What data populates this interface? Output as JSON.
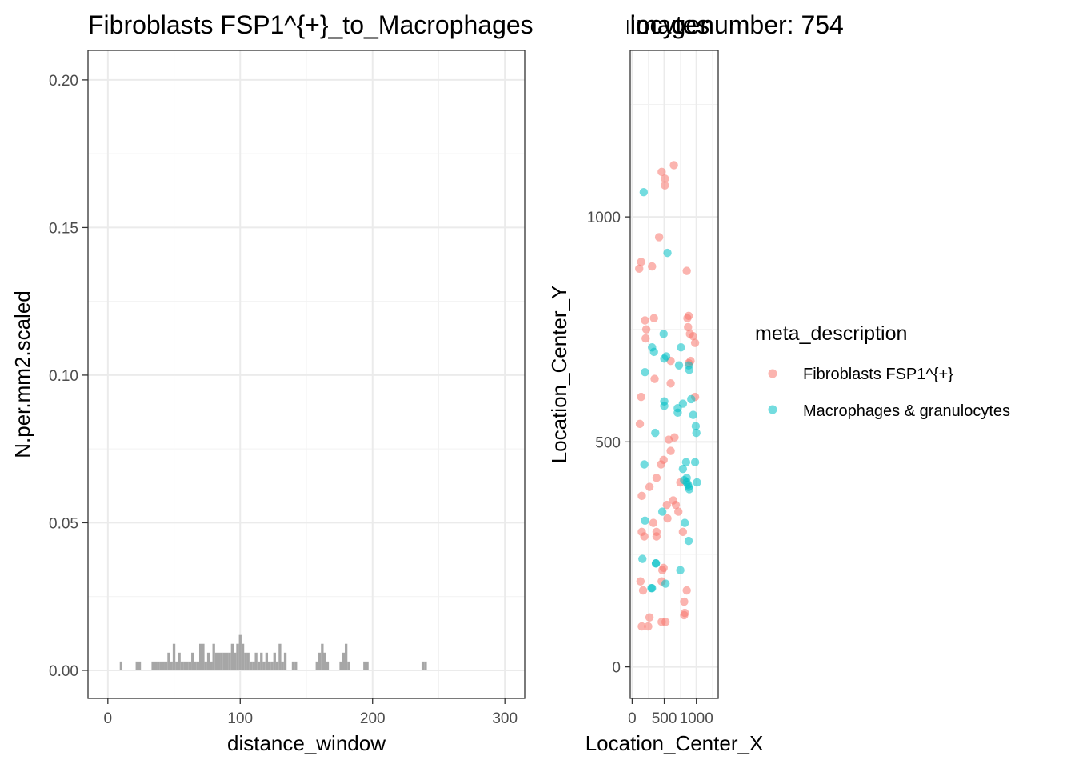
{
  "chart_data": [
    {
      "type": "bar",
      "title": "Fibroblasts FSP1^{+}_to_Macrophages & granulocytes",
      "xlabel": "distance_window",
      "ylabel": "N.per.mm2.scaled",
      "xlim": [
        -15,
        315
      ],
      "ylim": [
        -0.0095,
        0.21
      ],
      "xticks": [
        0,
        100,
        200,
        300
      ],
      "yticks": [
        0.0,
        0.05,
        0.1,
        0.15,
        0.2
      ],
      "ytick_labels": [
        "0.00",
        "0.05",
        "0.10",
        "0.15",
        "0.20"
      ],
      "grid": true,
      "bar_color": "#a6a6a6",
      "bar_width": 2,
      "x": [
        10,
        22,
        24,
        34,
        36,
        38,
        40,
        42,
        44,
        46,
        48,
        50,
        52,
        54,
        56,
        58,
        60,
        62,
        64,
        66,
        68,
        70,
        72,
        74,
        76,
        78,
        80,
        82,
        84,
        86,
        88,
        90,
        92,
        94,
        96,
        98,
        100,
        102,
        104,
        106,
        108,
        110,
        112,
        114,
        116,
        118,
        120,
        122,
        124,
        126,
        128,
        130,
        132,
        134,
        140,
        142,
        158,
        160,
        162,
        164,
        166,
        176,
        178,
        180,
        182,
        194,
        196,
        238,
        240
      ],
      "values": [
        0.003,
        0.003,
        0.003,
        0.003,
        0.003,
        0.003,
        0.003,
        0.003,
        0.003,
        0.006,
        0.003,
        0.009,
        0.003,
        0.006,
        0.003,
        0.003,
        0.003,
        0.003,
        0.006,
        0.003,
        0.003,
        0.009,
        0.009,
        0.003,
        0.006,
        0.003,
        0.009,
        0.006,
        0.006,
        0.006,
        0.006,
        0.006,
        0.006,
        0.009,
        0.006,
        0.009,
        0.012,
        0.009,
        0.006,
        0.006,
        0.003,
        0.003,
        0.006,
        0.003,
        0.006,
        0.003,
        0.006,
        0.003,
        0.003,
        0.006,
        0.003,
        0.009,
        0.003,
        0.006,
        0.003,
        0.003,
        0.003,
        0.006,
        0.009,
        0.006,
        0.003,
        0.003,
        0.006,
        0.009,
        0.003,
        0.003,
        0.003,
        0.003,
        0.003
      ]
    },
    {
      "type": "scatter",
      "title": "imagenumber:  754",
      "xlabel": "Location_Center_X",
      "ylabel": "Location_Center_Y",
      "xlim": [
        -30,
        1340
      ],
      "ylim": [
        -70,
        1370
      ],
      "xticks": [
        0,
        500,
        1000
      ],
      "xtick_labels": [
        "0",
        "500",
        "1000"
      ],
      "yticks": [
        0,
        500,
        1000
      ],
      "ytick_labels": [
        "0",
        "500",
        "1000"
      ],
      "grid": true,
      "legend_title": "meta_description",
      "legend_position": "right",
      "series": [
        {
          "name": "Fibroblasts FSP1^{+}",
          "color": "#F8766D",
          "x": [
            460,
            650,
            510,
            420,
            510,
            140,
            110,
            310,
            850,
            200,
            340,
            220,
            860,
            880,
            870,
            210,
            900,
            950,
            980,
            600,
            910,
            880,
            600,
            350,
            980,
            140,
            120,
            660,
            570,
            600,
            490,
            450,
            270,
            750,
            380,
            150,
            640,
            540,
            680,
            720,
            550,
            330,
            380,
            790,
            150,
            190,
            380,
            490,
            470,
            130,
            170,
            270,
            850,
            820,
            460,
            520,
            250,
            150,
            460,
            810,
            810
          ],
          "y": [
            1100,
            1115,
            1085,
            955,
            1070,
            900,
            885,
            890,
            880,
            770,
            775,
            750,
            775,
            780,
            755,
            730,
            740,
            735,
            720,
            680,
            680,
            675,
            630,
            640,
            600,
            600,
            540,
            510,
            505,
            480,
            460,
            450,
            400,
            410,
            420,
            380,
            370,
            360,
            360,
            345,
            330,
            320,
            300,
            300,
            300,
            290,
            290,
            220,
            215,
            190,
            170,
            110,
            170,
            120,
            190,
            100,
            90,
            90,
            100,
            145,
            115
          ]
        },
        {
          "name": "Macrophages & granulocytes",
          "color": "#00BFC4",
          "x": [
            180,
            550,
            490,
            310,
            340,
            760,
            530,
            500,
            880,
            730,
            890,
            200,
            500,
            920,
            790,
            500,
            710,
            710,
            950,
            990,
            1000,
            980,
            360,
            190,
            840,
            790,
            850,
            810,
            850,
            870,
            880,
            1010,
            890,
            470,
            200,
            880,
            820,
            160,
            370,
            370,
            750,
            300,
            310,
            520
          ],
          "y": [
            1055,
            920,
            740,
            710,
            700,
            710,
            690,
            685,
            670,
            670,
            660,
            655,
            590,
            595,
            585,
            580,
            575,
            565,
            560,
            535,
            520,
            455,
            520,
            450,
            455,
            440,
            420,
            415,
            410,
            405,
            400,
            410,
            395,
            345,
            325,
            280,
            320,
            240,
            230,
            230,
            215,
            175,
            175,
            185
          ]
        }
      ]
    }
  ]
}
